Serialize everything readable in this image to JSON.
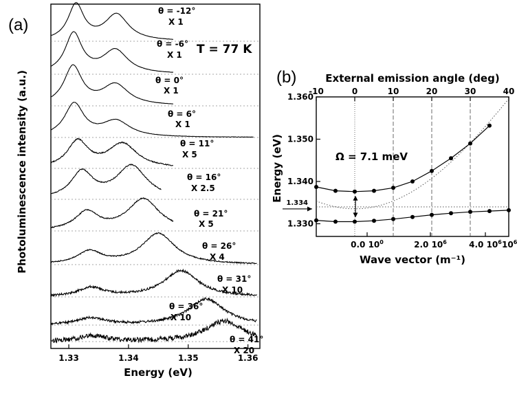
{
  "chart_data": [
    {
      "type": "line",
      "panel": "(a)",
      "annotation": "T = 77 K",
      "xlabel": "Energy  (eV)",
      "ylabel": "Photoluminescence intensity (a.u.)",
      "xlim": [
        1.327,
        1.362
      ],
      "xticks": [
        "1.33",
        "1.34",
        "1.35",
        "1.36"
      ],
      "peak_shape": {
        "lower_peak_center_ev": [
          1.3312,
          1.3308,
          1.3307,
          1.3309,
          1.3315,
          1.3322,
          1.333,
          1.3335,
          1.3337,
          1.3338,
          1.334
        ],
        "upper_peak_center_ev": [
          1.338,
          1.3378,
          1.3378,
          1.3379,
          1.339,
          1.3405,
          1.3425,
          1.345,
          1.3488,
          1.353,
          1.356
        ]
      },
      "spectra": [
        {
          "theta": "θ = -12°",
          "scale": "X 1",
          "lower_amp": 52,
          "upper_amp": 38
        },
        {
          "theta": "θ = -6°",
          "scale": "X 1",
          "lower_amp": 58,
          "upper_amp": 34
        },
        {
          "theta": "θ = 0°",
          "scale": "X 1",
          "lower_amp": 56,
          "upper_amp": 30
        },
        {
          "theta": "θ = 6°",
          "scale": "X 1",
          "lower_amp": 48,
          "upper_amp": 23
        },
        {
          "theta": "θ = 11°",
          "scale": "X 5",
          "lower_amp": 38,
          "upper_amp": 35
        },
        {
          "theta": "θ = 16°",
          "scale": "X 2.5",
          "lower_amp": 38,
          "upper_amp": 48
        },
        {
          "theta": "θ = 21°",
          "scale": "X 5",
          "lower_amp": 26,
          "upper_amp": 46
        },
        {
          "theta": "θ = 26°",
          "scale": "X 4",
          "lower_amp": 18,
          "upper_amp": 45
        },
        {
          "theta": "θ = 31°",
          "scale": "X 10",
          "lower_amp": 13,
          "upper_amp": 38
        },
        {
          "theta": "θ = 36°",
          "scale": "X 10",
          "lower_amp": 10,
          "upper_amp": 38
        },
        {
          "theta": "θ = 41°",
          "scale": "X 20",
          "lower_amp": 8,
          "upper_amp": 30
        }
      ]
    },
    {
      "type": "scatter",
      "panel": "(b)",
      "title": "External emission angle  (deg)",
      "xlabel": "Wave vector  (m⁻¹)",
      "ylabel": "Energy (eV)",
      "ylim": [
        1.327,
        1.36
      ],
      "yticks": [
        "1.360",
        "1.350",
        "1.340",
        "1.330"
      ],
      "y_marker": "1.334",
      "top_ticks": [
        "-10",
        "0",
        "10",
        "20",
        "30",
        "40"
      ],
      "top_tick_values": [
        -10,
        0,
        10,
        20,
        30,
        40
      ],
      "bottom_ticks": [
        "0.0 10",
        "2.0 10",
        "4.0 10"
      ],
      "bottom_tick_parts": [
        [
          "0.0 10",
          "0"
        ],
        [
          "2.0 10",
          "6"
        ],
        [
          "4.0 10",
          "6"
        ]
      ],
      "bottom_tick_values": [
        0.0,
        2.0,
        4.0
      ],
      "bottom_last_label": [
        "10",
        "6"
      ],
      "annotation": "Ω = 7.1 meV",
      "rabi_splitting_mev": 7.1,
      "uncoupled_exciton_ev": 1.334,
      "upper_branch": {
        "angle_deg": [
          -10,
          -5,
          0,
          5,
          10,
          15,
          20,
          25,
          30,
          35
        ],
        "energy_ev": [
          1.3387,
          1.3378,
          1.3376,
          1.3378,
          1.3385,
          1.34,
          1.3425,
          1.3455,
          1.349,
          1.3532
        ]
      },
      "lower_branch": {
        "angle_deg": [
          -10,
          -5,
          0,
          5,
          10,
          15,
          20,
          25,
          30,
          35,
          40
        ],
        "energy_ev": [
          1.3308,
          1.3305,
          1.3305,
          1.3307,
          1.3311,
          1.3316,
          1.3321,
          1.3325,
          1.3328,
          1.333,
          1.3332
        ]
      }
    }
  ],
  "curve_colors": {
    "line": "#000000",
    "dotted": "#555555"
  }
}
